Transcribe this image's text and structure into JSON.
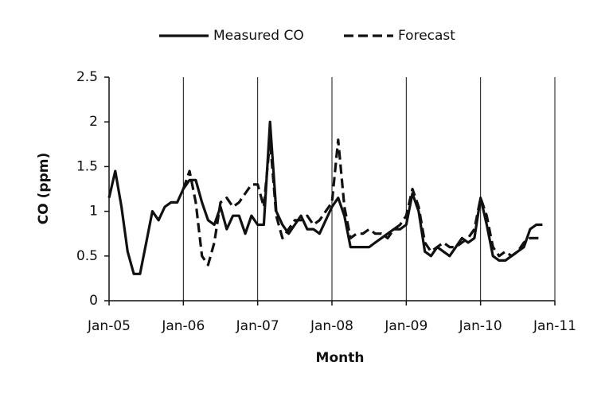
{
  "chart_data": {
    "type": "line",
    "x_label": "Month",
    "y_label": "CO (ppm)",
    "x": [
      "Jan-05",
      "Feb-05",
      "Mar-05",
      "Apr-05",
      "May-05",
      "Jun-05",
      "Jul-05",
      "Aug-05",
      "Sep-05",
      "Oct-05",
      "Nov-05",
      "Dec-05",
      "Jan-06",
      "Feb-06",
      "Mar-06",
      "Apr-06",
      "May-06",
      "Jun-06",
      "Jul-06",
      "Aug-06",
      "Sep-06",
      "Oct-06",
      "Nov-06",
      "Dec-06",
      "Jan-07",
      "Feb-07",
      "Mar-07",
      "Apr-07",
      "May-07",
      "Jun-07",
      "Jul-07",
      "Aug-07",
      "Sep-07",
      "Oct-07",
      "Nov-07",
      "Dec-07",
      "Jan-08",
      "Feb-08",
      "Mar-08",
      "Apr-08",
      "May-08",
      "Jun-08",
      "Jul-08",
      "Aug-08",
      "Sep-08",
      "Oct-08",
      "Nov-08",
      "Dec-08",
      "Jan-09",
      "Feb-09",
      "Mar-09",
      "Apr-09",
      "May-09",
      "Jun-09",
      "Jul-09",
      "Aug-09",
      "Sep-09",
      "Oct-09",
      "Nov-09",
      "Dec-09",
      "Jan-10",
      "Feb-10",
      "Mar-10",
      "Apr-10",
      "May-10",
      "Jun-10",
      "Jul-10",
      "Aug-10",
      "Sep-10",
      "Oct-10",
      "Nov-10"
    ],
    "series": [
      {
        "name": "Measured CO",
        "color": "#111111",
        "dash": false,
        "values": [
          1.15,
          1.45,
          1.05,
          0.55,
          0.3,
          0.3,
          0.65,
          1.0,
          0.9,
          1.05,
          1.1,
          1.1,
          1.25,
          1.35,
          1.35,
          1.1,
          0.9,
          0.85,
          1.05,
          0.8,
          0.95,
          0.95,
          0.75,
          0.95,
          0.85,
          0.85,
          2.0,
          1.0,
          0.85,
          0.75,
          0.85,
          0.95,
          0.8,
          0.8,
          0.75,
          0.9,
          1.05,
          1.15,
          0.95,
          0.6,
          0.6,
          0.6,
          0.6,
          0.65,
          0.7,
          0.75,
          0.8,
          0.8,
          0.85,
          1.2,
          1.0,
          0.55,
          0.5,
          0.6,
          0.55,
          0.5,
          0.6,
          0.7,
          0.65,
          0.7,
          1.15,
          0.85,
          0.5,
          0.45,
          0.45,
          0.5,
          0.55,
          0.6,
          0.8,
          0.85,
          0.85
        ]
      },
      {
        "name": "Forecast",
        "color": "#111111",
        "dash": true,
        "values": [
          null,
          null,
          null,
          null,
          null,
          null,
          null,
          null,
          null,
          null,
          null,
          null,
          1.25,
          1.45,
          1.1,
          0.5,
          0.4,
          0.65,
          1.1,
          1.15,
          1.05,
          1.1,
          1.2,
          1.3,
          1.3,
          1.05,
          1.8,
          0.95,
          0.7,
          0.8,
          0.9,
          0.9,
          0.95,
          0.85,
          0.9,
          1.0,
          1.1,
          1.8,
          1.05,
          0.7,
          0.75,
          0.75,
          0.8,
          0.75,
          0.75,
          0.7,
          0.8,
          0.85,
          0.95,
          1.25,
          1.05,
          0.65,
          0.55,
          0.6,
          0.65,
          0.6,
          0.6,
          0.65,
          0.7,
          0.8,
          1.15,
          0.95,
          0.6,
          0.5,
          0.55,
          0.5,
          0.55,
          0.65,
          0.7,
          0.7,
          0.7
        ]
      }
    ],
    "xlim": [
      "Jan-05",
      "Jan-11"
    ],
    "xticks": [
      "Jan-05",
      "Jan-06",
      "Jan-07",
      "Jan-08",
      "Jan-09",
      "Jan-10",
      "Jan-11"
    ],
    "ylim": [
      0,
      2.5
    ],
    "yticks": [
      0,
      0.5,
      1,
      1.5,
      2,
      2.5
    ],
    "xgrid": true,
    "legend": "top"
  }
}
